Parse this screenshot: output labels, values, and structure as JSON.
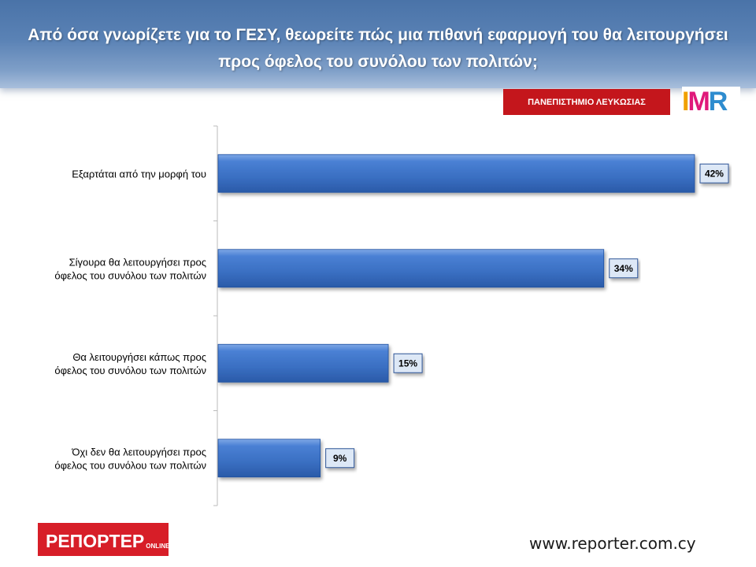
{
  "header": {
    "title": "Από όσα γνωρίζετε για το ΓΕΣΥ, θεωρείτε πώς μια πιθανή εφαρμογή του θα λειτουργήσει προς όφελος του συνόλου των πολιτών;"
  },
  "logos": {
    "university": "ΠΑΝΕΠΙΣΤΗΜΙΟ ΛΕΥΚΩΣΙΑΣ",
    "imr": [
      "I",
      "M",
      "R"
    ],
    "imr_colors": [
      "#f0a000",
      "#e0197a",
      "#2e8ccf"
    ],
    "reporter_main": "ΡΕΠΟΡΤΕΡ",
    "reporter_sub": "ONLINE"
  },
  "footer": {
    "url": "www.reporter.com.cy"
  },
  "colors": {
    "bar": "#3a6fc2",
    "bar_dark": "#1f4f9e",
    "label_box": "#dde8f6"
  },
  "chart_data": {
    "type": "bar",
    "orientation": "horizontal",
    "categories": [
      [
        "Εξαρτάται από την μορφή του"
      ],
      [
        "Σίγουρα θα λειτουργήσει προς",
        "όφελος του συνόλου των πολιτών"
      ],
      [
        "Θα λειτουργήσει κάπως προς",
        "όφελος του συνόλου των πολιτών"
      ],
      [
        "Όχι δεν θα λειτουργήσει προς",
        "όφελος του συνόλου των πολιτών"
      ]
    ],
    "values": [
      42,
      34,
      15,
      9
    ],
    "value_labels": [
      "42%",
      "34%",
      "15%",
      "9%"
    ],
    "xlim": [
      0,
      47
    ],
    "grid": false,
    "legend": "none"
  }
}
